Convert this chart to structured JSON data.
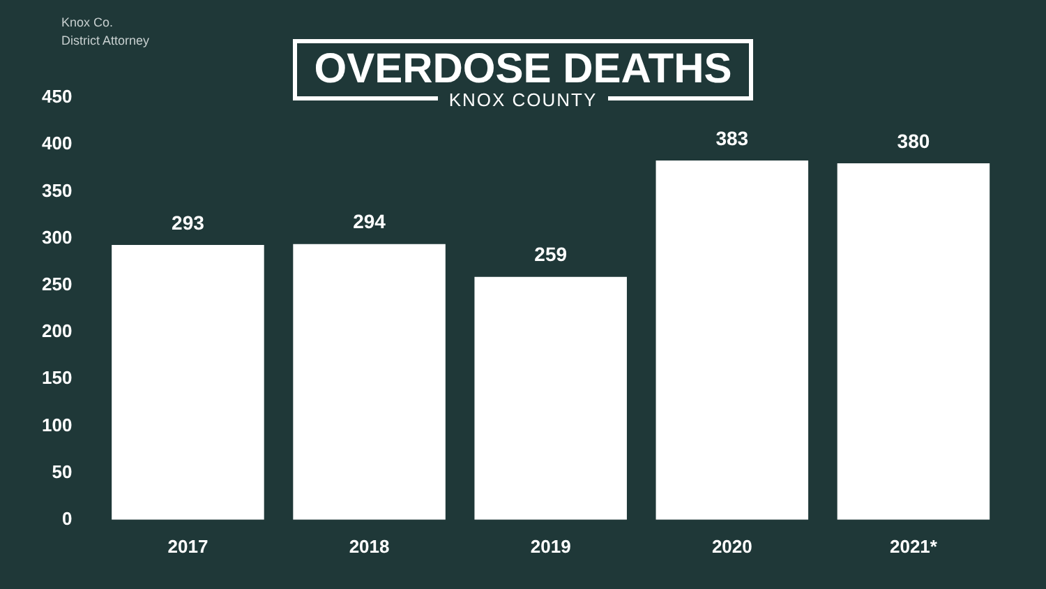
{
  "chart_data": {
    "type": "bar",
    "title": "OVERDOSE DEATHS",
    "subtitle": "KNOX COUNTY",
    "annotations": [
      "Knox Co.\nDistrict Attorney"
    ],
    "categories": [
      "2017",
      "2018",
      "2019",
      "2020",
      "2021*"
    ],
    "values": [
      293,
      294,
      259,
      383,
      380
    ],
    "color": "#ffffff",
    "ylim": [
      0,
      450
    ],
    "yticks": [
      0,
      50,
      100,
      150,
      200,
      250,
      300,
      350,
      400,
      450
    ],
    "grid": false,
    "data_labels": true,
    "legend": false
  }
}
